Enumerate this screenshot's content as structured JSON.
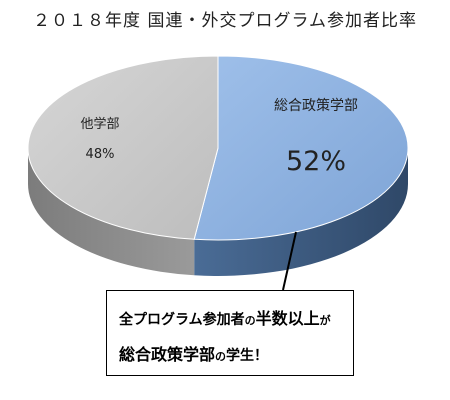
{
  "chart_data": {
    "type": "pie",
    "title": "２０１８年度 国連・外交プログラム参加者比率",
    "slices": [
      {
        "label": "総合政策学部",
        "value": 52,
        "value_label": "52%",
        "color": "#8db0df",
        "side_color": "#3f5d82"
      },
      {
        "label": "他学部",
        "value": 48,
        "value_label": "48%",
        "color": "#c8c8c8",
        "side_color": "#8a8a8a"
      }
    ],
    "style": "3d"
  },
  "callout": {
    "line1": {
      "a": "全プログラム参加者",
      "b": "の",
      "c": "半数以上",
      "d": "が"
    },
    "line2": {
      "a": "総合政策学部",
      "b": "の",
      "c": "学生！"
    }
  }
}
